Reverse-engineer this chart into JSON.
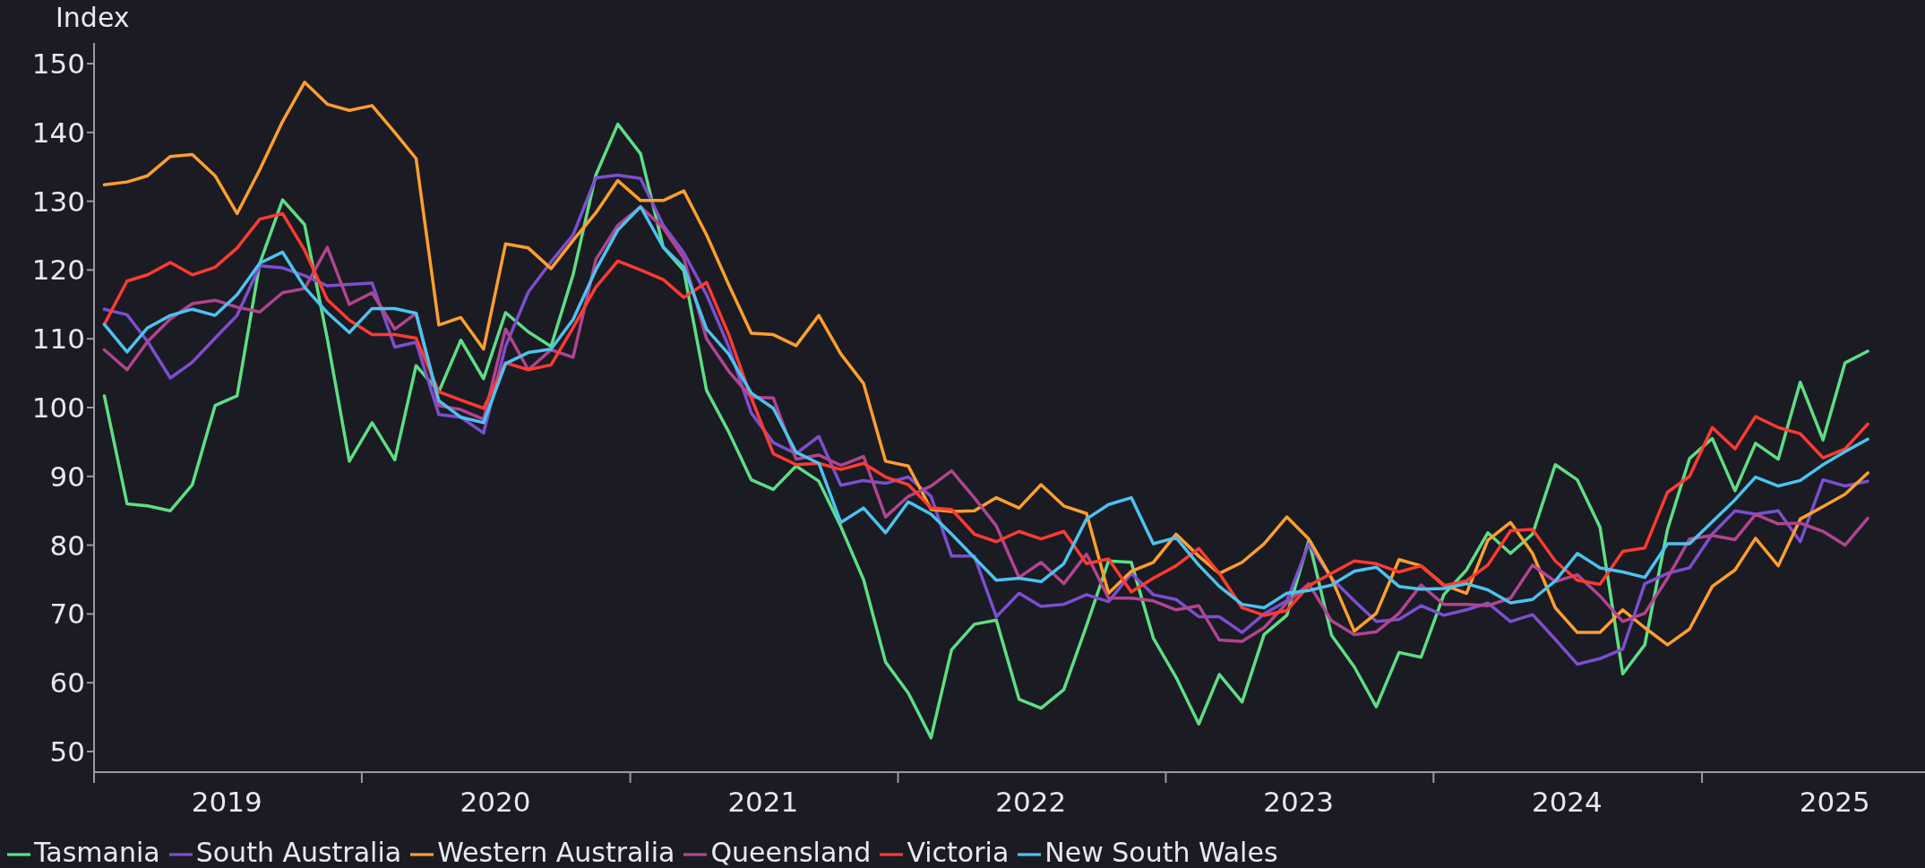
{
  "chart_data": {
    "type": "line",
    "ylabel": "Index",
    "x": [
      "2019-01-15",
      "2019-02-15",
      "2019-03-15",
      "2019-04-15",
      "2019-05-15",
      "2019-06-15",
      "2019-07-15",
      "2019-08-15",
      "2019-09-15",
      "2019-10-15",
      "2019-11-15",
      "2019-12-15",
      "2020-01-15",
      "2020-02-15",
      "2020-03-15",
      "2020-04-15",
      "2020-05-15",
      "2020-06-15",
      "2020-07-15",
      "2020-08-15",
      "2020-09-15",
      "2020-10-15",
      "2020-11-15",
      "2020-12-15",
      "2021-01-15",
      "2021-02-15",
      "2021-03-15",
      "2021-04-15",
      "2021-05-15",
      "2021-06-15",
      "2021-07-15",
      "2021-08-15",
      "2021-09-15",
      "2021-10-15",
      "2021-11-15",
      "2021-12-15",
      "2022-01-15",
      "2022-02-15",
      "2022-03-15",
      "2022-04-15",
      "2022-05-15",
      "2022-06-15",
      "2022-07-15",
      "2022-08-15",
      "2022-09-15",
      "2022-10-15",
      "2022-11-15",
      "2022-12-15",
      "2023-01-15",
      "2023-02-15",
      "2023-03-15",
      "2023-04-15",
      "2023-05-15",
      "2023-06-15",
      "2023-07-15",
      "2023-08-15",
      "2023-09-15",
      "2023-10-15",
      "2023-11-15",
      "2023-12-15",
      "2024-01-15",
      "2024-02-15",
      "2024-03-15",
      "2024-04-15",
      "2024-05-15",
      "2024-06-15",
      "2024-07-15",
      "2024-08-15",
      "2024-09-15",
      "2024-10-15",
      "2024-11-15",
      "2024-12-15",
      "2025-01-15",
      "2025-02-15",
      "2025-03-15",
      "2025-04-15",
      "2025-05-15",
      "2025-06-15",
      "2025-07-15",
      "2025-08-15"
    ],
    "series": [
      {
        "name": "Tasmania",
        "color": "#5ede84",
        "values": [
          101.7,
          86,
          85.7,
          85,
          88.8,
          100.3,
          101.7,
          121,
          130.2,
          126.6,
          110,
          92.2,
          97.8,
          92.4,
          106.1,
          102.3,
          109.8,
          104.2,
          113.8,
          111,
          108.9,
          119.3,
          133.8,
          141.2,
          136.9,
          123.3,
          119.9,
          102.5,
          96.5,
          89.5,
          88.1,
          91.5,
          89.3,
          82.7,
          75,
          63,
          58.5,
          52,
          64.8,
          68.5,
          69.1,
          57.6,
          56.3,
          59,
          68.3,
          77.7,
          77.5,
          66.5,
          60.8,
          54,
          61.2,
          57.2,
          67,
          69.8,
          80.7,
          66.9,
          62.3,
          56.5,
          64.4,
          63.7,
          72.8,
          76.4,
          81.8,
          78.8,
          81.6,
          91.7,
          89.5,
          82.6,
          61.3,
          65.5,
          82.3,
          92.6,
          95.5,
          87.9,
          94.8,
          92.5,
          103.7,
          95.3,
          106.5,
          108.2
        ]
      },
      {
        "name": "South Australia",
        "color": "#7b4fcf",
        "values": [
          114.3,
          113.5,
          109.6,
          104.3,
          106.6,
          110.1,
          113.4,
          120.6,
          120.3,
          119.2,
          117.7,
          117.9,
          118.1,
          108.8,
          109.5,
          99,
          98.6,
          96.3,
          108.9,
          116.8,
          121.2,
          125.1,
          133.4,
          133.8,
          133.3,
          126.5,
          122.5,
          116.4,
          108.9,
          99.2,
          94.9,
          93.3,
          95.8,
          88.7,
          89.4,
          89,
          89.9,
          87.1,
          78.4,
          78.4,
          69.6,
          73,
          71.1,
          71.4,
          72.8,
          71.8,
          75.9,
          72.8,
          72.1,
          69.6,
          69.6,
          67.3,
          70,
          71.9,
          80.2,
          75.2,
          71.9,
          68.9,
          69.2,
          71.2,
          69.8,
          70.6,
          71.6,
          68.9,
          69.9,
          66.3,
          62.7,
          63.5,
          64.9,
          74.4,
          75.9,
          76.7,
          81.6,
          85,
          84.5,
          85,
          80.5,
          89.5,
          88.6,
          89.3
        ]
      },
      {
        "name": "Western Australia",
        "color": "#ff9f2e",
        "values": [
          132.4,
          132.8,
          133.7,
          136.5,
          136.8,
          133.7,
          128.2,
          134.6,
          141.6,
          147.3,
          144.1,
          143.2,
          143.9,
          140,
          136.2,
          112,
          113.1,
          108.5,
          123.8,
          123.2,
          120.2,
          124.3,
          128.3,
          133,
          130.1,
          130.1,
          131.5,
          125.1,
          117.9,
          110.8,
          110.6,
          109,
          113.4,
          107.8,
          103.5,
          92.2,
          91.5,
          85.2,
          84.9,
          85,
          86.9,
          85.4,
          88.8,
          85.7,
          84.6,
          73,
          76.2,
          77.5,
          81.6,
          78.4,
          75.9,
          77.5,
          80.2,
          84.1,
          80.9,
          75.2,
          67.5,
          70.1,
          77.9,
          77,
          74.2,
          73,
          80.7,
          83.3,
          78.8,
          70.9,
          67.3,
          67.3,
          70.6,
          68,
          65.5,
          67.8,
          74,
          76.4,
          81,
          77,
          83.8,
          85.6,
          87.4,
          90.5
        ]
      },
      {
        "name": "Queensland",
        "color": "#b0458f",
        "values": [
          108.4,
          105.5,
          109.6,
          112.9,
          115.1,
          115.6,
          114.6,
          113.9,
          116.7,
          117.3,
          123.3,
          115,
          116.7,
          111.4,
          113.7,
          100.3,
          99.7,
          98.3,
          111.4,
          105.5,
          108.4,
          107.3,
          121.5,
          126.5,
          129.2,
          126.1,
          121.7,
          110,
          105.3,
          101.5,
          101.4,
          92.5,
          93.1,
          91.6,
          92.9,
          84.1,
          87.1,
          88.6,
          90.8,
          86.9,
          82.8,
          75.3,
          77.5,
          74.4,
          78.7,
          72.3,
          72.3,
          71.9,
          70.6,
          71.2,
          66.2,
          66,
          68,
          71.6,
          74.4,
          69,
          67,
          67.4,
          70.1,
          74.2,
          71.4,
          71.4,
          71.2,
          72.3,
          77.1,
          74.7,
          75.7,
          72.6,
          68.9,
          70.1,
          75.2,
          80.9,
          81.4,
          80.8,
          84.5,
          83.1,
          83.2,
          82,
          80,
          83.9
        ]
      },
      {
        "name": "Victoria",
        "color": "#ff3b30",
        "values": [
          112.1,
          118.4,
          119.3,
          121.1,
          119.3,
          120.4,
          123.2,
          127.4,
          128.2,
          122.9,
          115.7,
          112.7,
          110.6,
          110.6,
          110.1,
          102.3,
          101.1,
          99.9,
          106.5,
          105.5,
          106.2,
          111.6,
          117.5,
          121.3,
          120,
          118.6,
          116,
          118.2,
          110.7,
          101.4,
          93.3,
          91.7,
          91.9,
          91,
          91.9,
          89.9,
          88.8,
          85.4,
          85.2,
          81.6,
          80.5,
          82,
          80.9,
          82,
          77.3,
          78,
          73.2,
          75.2,
          77,
          79.5,
          75.9,
          70.9,
          69.8,
          70.5,
          74.1,
          75.9,
          77.7,
          77.3,
          76.1,
          77,
          74.1,
          74.8,
          77.1,
          82.1,
          82.3,
          77.7,
          74.9,
          74.3,
          79.1,
          79.6,
          87.7,
          90,
          97.1,
          94,
          98.7,
          97.1,
          96.2,
          92.7,
          94,
          97.6
        ]
      },
      {
        "name": "New South Wales",
        "color": "#4cc3ef",
        "values": [
          112.1,
          108.1,
          111.6,
          113.4,
          114.3,
          113.4,
          116.4,
          121,
          122.6,
          117.5,
          113.8,
          110.9,
          114.4,
          114.4,
          113.7,
          101,
          98.6,
          97.8,
          106.4,
          108,
          108.5,
          112.8,
          120,
          125.8,
          129.2,
          123.3,
          120.4,
          111.4,
          107.8,
          102.1,
          99.9,
          93.5,
          91.9,
          83.3,
          85.4,
          81.8,
          86.3,
          84.5,
          81.6,
          78.2,
          74.9,
          75.2,
          74.7,
          77.3,
          83.8,
          85.9,
          86.9,
          80.2,
          81.1,
          77.1,
          74,
          71.4,
          70.9,
          73,
          73.4,
          74.2,
          76.2,
          76.8,
          74,
          73.6,
          73.7,
          74.4,
          73.5,
          71.6,
          72.1,
          74.8,
          78.8,
          76.7,
          76.1,
          75.3,
          80.2,
          80.2,
          83.4,
          86.6,
          89.9,
          88.6,
          89.4,
          91.7,
          93.6,
          95.4
        ]
      }
    ],
    "xlim": [
      "2019-01-01",
      "2025-11-01"
    ],
    "xticks": [
      {
        "value": "2019-01-01",
        "label": null
      },
      {
        "value": "2019-07-01",
        "label": "2019"
      },
      {
        "value": "2020-01-01",
        "label": null
      },
      {
        "value": "2020-07-01",
        "label": "2020"
      },
      {
        "value": "2021-01-01",
        "label": null
      },
      {
        "value": "2021-07-01",
        "label": "2021"
      },
      {
        "value": "2022-01-01",
        "label": null
      },
      {
        "value": "2022-07-01",
        "label": "2022"
      },
      {
        "value": "2023-01-01",
        "label": null
      },
      {
        "value": "2023-07-01",
        "label": "2023"
      },
      {
        "value": "2024-01-01",
        "label": null
      },
      {
        "value": "2024-07-01",
        "label": "2024"
      },
      {
        "value": "2025-01-01",
        "label": null
      },
      {
        "value": "2025-07-01",
        "label": "2025"
      }
    ],
    "ylim": [
      47,
      153
    ],
    "yticks": [
      50,
      60,
      70,
      80,
      90,
      100,
      110,
      120,
      130,
      140,
      150
    ],
    "legend": "bottom left",
    "line_style": "solid"
  }
}
